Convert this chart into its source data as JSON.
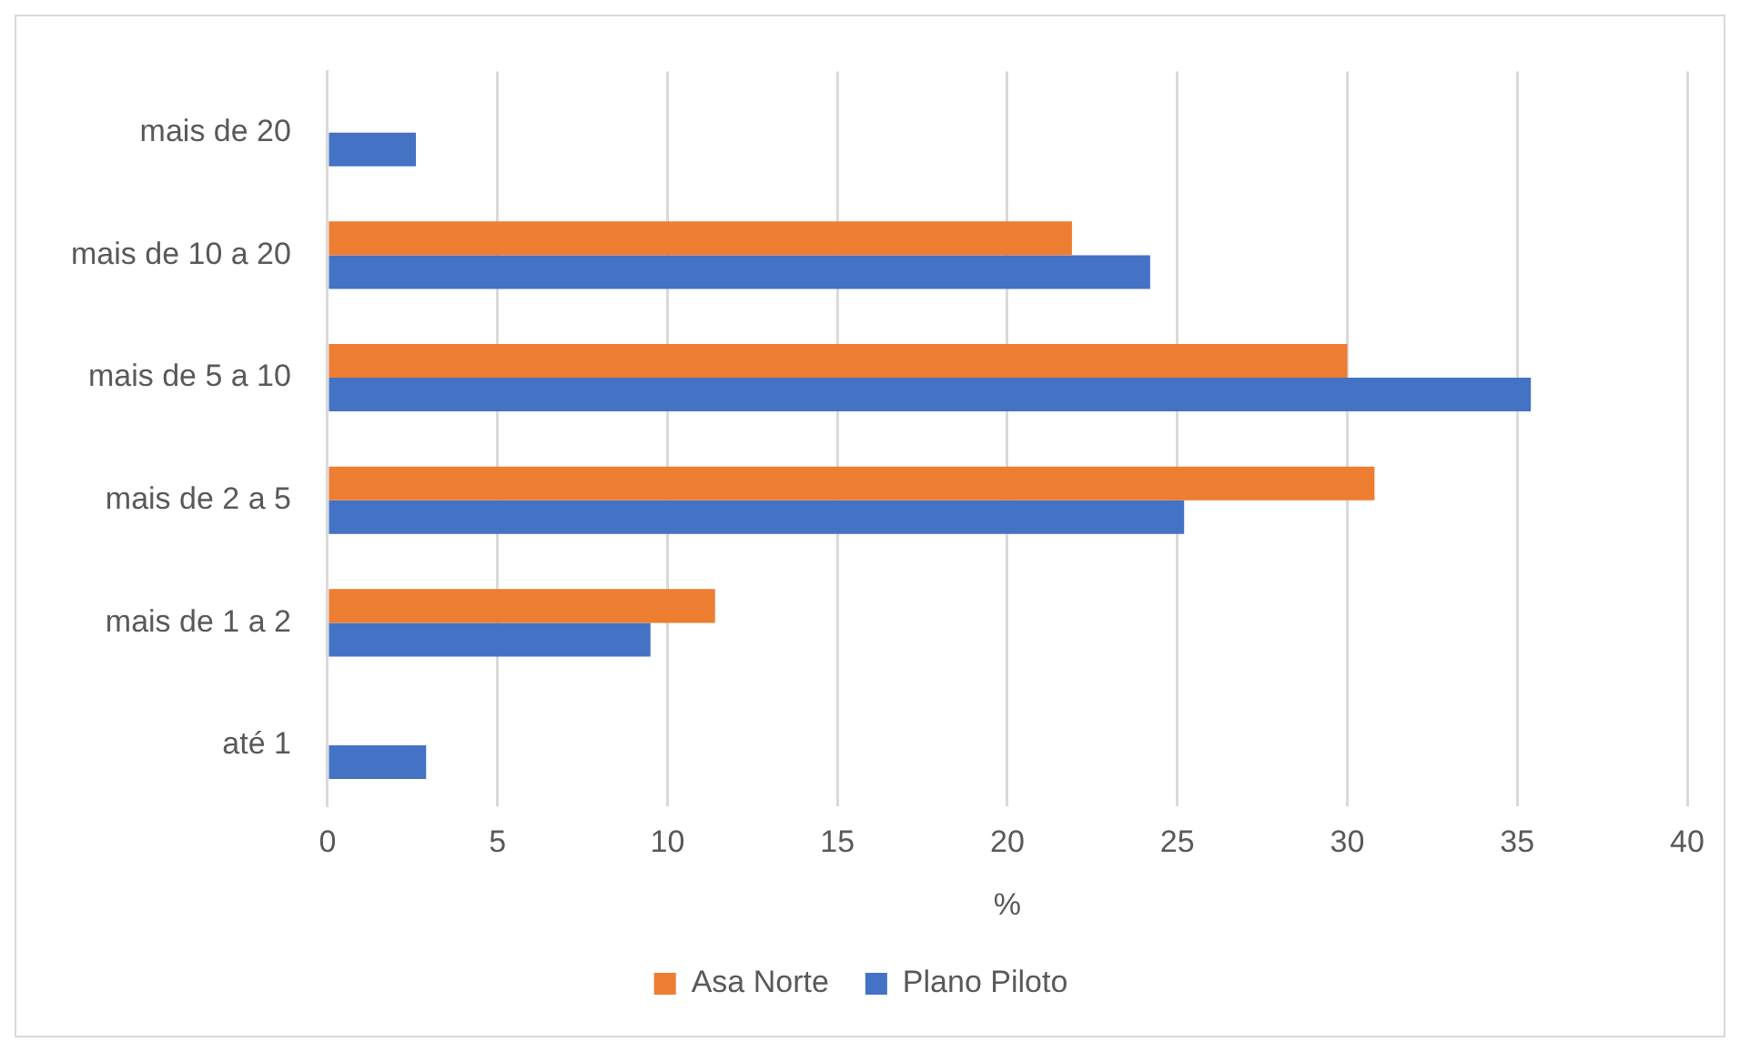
{
  "chart_data": {
    "type": "bar",
    "orientation": "horizontal",
    "xlabel": "%",
    "categories": [
      "mais de 20",
      "mais de 10 a 20",
      "mais de 5 a 10",
      "mais de 2 a 5",
      "mais de 1 a 2",
      "até 1"
    ],
    "series": [
      {
        "name": "Asa Norte",
        "color": "#ed7d31",
        "values": [
          null,
          21.9,
          30.0,
          30.8,
          11.4,
          null
        ]
      },
      {
        "name": "Plano Piloto",
        "color": "#4472c4",
        "values": [
          2.6,
          24.2,
          35.4,
          25.2,
          9.5,
          2.9
        ]
      }
    ],
    "xlim": [
      0,
      40
    ],
    "xticks": [
      0,
      5,
      10,
      15,
      20,
      25,
      30,
      35,
      40
    ],
    "grid": "x",
    "legend": "bottom"
  }
}
